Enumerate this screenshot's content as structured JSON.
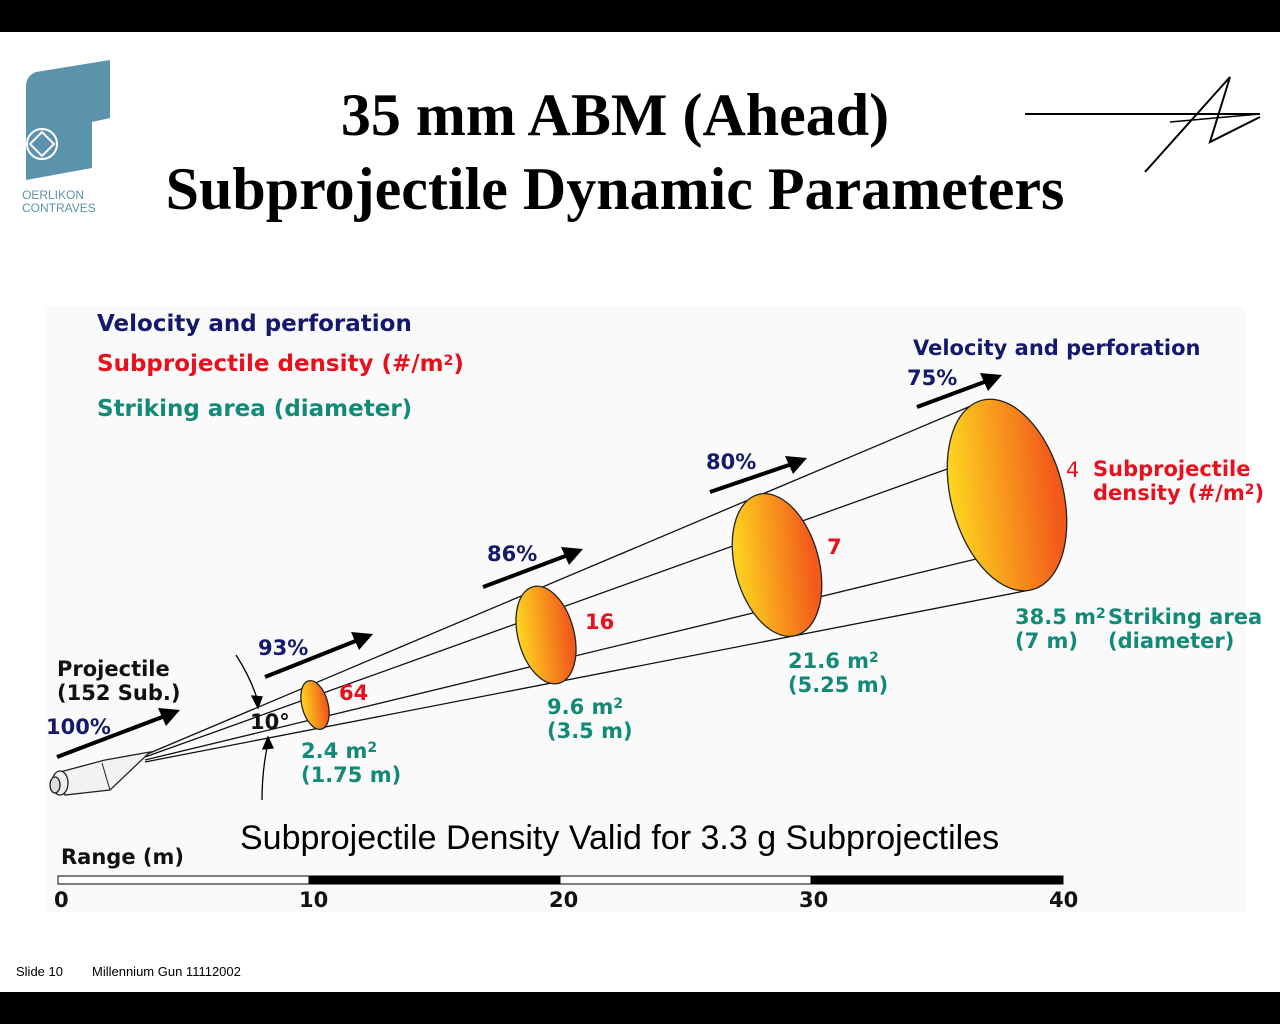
{
  "title": {
    "line1": "35 mm ABM (Ahead)",
    "line2": "Subprojectile Dynamic Parameters"
  },
  "logo": {
    "text1": "OERLIKON",
    "text2": "CONTRAVES"
  },
  "legend": {
    "velocity": "Velocity and perforation",
    "density": "Subprojectile density (#/m",
    "density_sup": "2",
    "density_end": ")",
    "area": "Striking area (diameter)"
  },
  "projectile": {
    "line1": "Projectile",
    "line2": "(152 Sub.)",
    "velocity": "100%",
    "angle": "10°"
  },
  "stations": [
    {
      "velocity": "93%",
      "density": "64",
      "area": "2.4 m",
      "diameter": "(1.75 m)"
    },
    {
      "velocity": "86%",
      "density": "16",
      "area": "9.6 m",
      "diameter": "(3.5 m)"
    },
    {
      "velocity": "80%",
      "density": "7",
      "area": "21.6 m",
      "diameter": "(5.25 m)"
    },
    {
      "velocity": "75%",
      "density": "4",
      "area": "38.5 m",
      "diameter": "(7 m)"
    }
  ],
  "right_labels": {
    "velocity": "Velocity and perforation",
    "density1": "Subprojectile",
    "density2": "density (#/m",
    "area1": "Striking area",
    "area2": "(diameter)"
  },
  "sup2": "2",
  "close_paren": ")",
  "note": "Subprojectile Density Valid for 3.3 g Subprojectiles",
  "range": {
    "label": "Range (m)",
    "ticks": [
      "0",
      "10",
      "20",
      "30",
      "40"
    ]
  },
  "footer": {
    "slide": "Slide 10",
    "name": "Millennium Gun 11112002"
  },
  "colors": {
    "navy": "#141a6b",
    "red": "#e8101c",
    "teal": "#138a78",
    "logo": "#5b93ad"
  }
}
